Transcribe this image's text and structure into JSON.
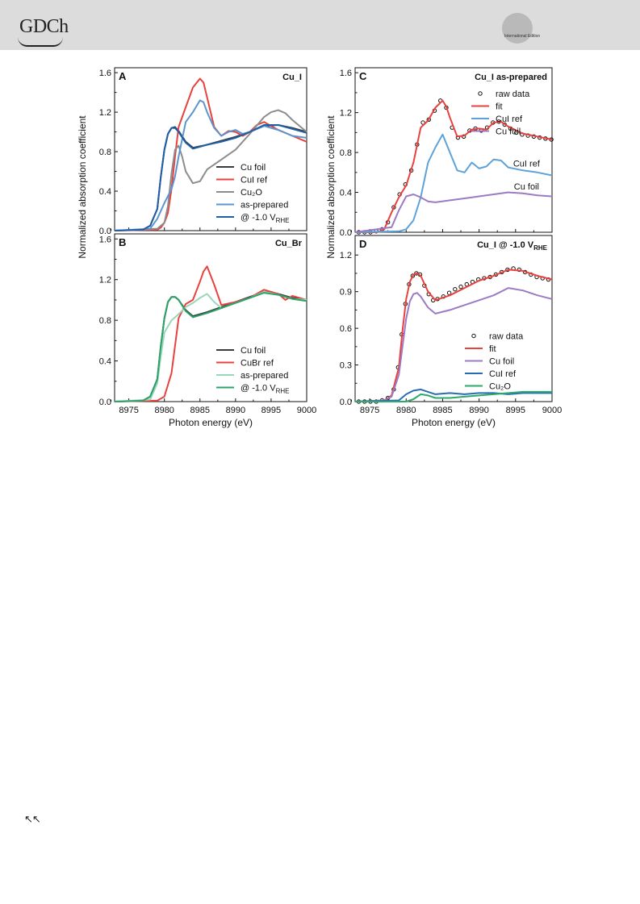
{
  "header": {
    "logo_text": "GDCh",
    "edition_label": "International Edition",
    "back_arrows": "↖↖"
  },
  "colors": {
    "cu_foil": "#3a3a3a",
    "red": "#e8413e",
    "cu2o_grey": "#8c8c8c",
    "as_prepared_blue": "#5b95cf",
    "applied_blue": "#1f5fa6",
    "light_green": "#9ad7b6",
    "green": "#2ba36b",
    "purple": "#9a7bc4",
    "cui_ref_blue": "#5ea2d8",
    "cui_ref_dark_blue": "#2a6cb3",
    "cu2o_green": "#2ea86b"
  },
  "chart_data": [
    {
      "id": "A",
      "type": "line",
      "panel_letter": "A",
      "title": "Cu_I",
      "xlim": [
        8973,
        9000
      ],
      "ylim": [
        0,
        1.65
      ],
      "yticks": [
        "0.0",
        "0.4",
        "0.8",
        "1.2",
        "1.6"
      ],
      "xticks": [],
      "legend_placement": "bottom-right",
      "series": [
        {
          "name": "Cu foil",
          "color_key": "cu_foil",
          "x": [
            8973,
            8977,
            8978,
            8979,
            8979.5,
            8980,
            8980.5,
            8981,
            8981.5,
            8982,
            8983,
            8984,
            8986,
            8988,
            8990,
            8992,
            8994,
            8996,
            8998,
            9000
          ],
          "y": [
            0,
            0.01,
            0.05,
            0.22,
            0.55,
            0.82,
            0.98,
            1.04,
            1.05,
            1.01,
            0.9,
            0.84,
            0.87,
            0.91,
            0.95,
            1.0,
            1.06,
            1.07,
            1.04,
            1.0
          ]
        },
        {
          "name": "CuI ref",
          "color_key": "red",
          "x": [
            8973,
            8979,
            8979.5,
            8980,
            8980.5,
            8981,
            8981.5,
            8982,
            8983,
            8984,
            8985,
            8985.5,
            8986,
            8987,
            8988,
            8989,
            8990,
            8991,
            8992,
            8993,
            8994,
            8996,
            8998,
            9000
          ],
          "y": [
            0,
            0.01,
            0.03,
            0.08,
            0.18,
            0.42,
            0.75,
            1.05,
            1.25,
            1.45,
            1.54,
            1.5,
            1.35,
            1.05,
            0.96,
            1.01,
            1.0,
            0.96,
            1.0,
            1.07,
            1.1,
            1.02,
            0.96,
            0.9
          ]
        },
        {
          "name": "Cu₂O",
          "color_key": "cu2o_grey",
          "x": [
            8973,
            8979,
            8980,
            8980.5,
            8981,
            8981.5,
            8982,
            8982.5,
            8983,
            8984,
            8985,
            8986,
            8988,
            8990,
            8992,
            8994,
            8995,
            8996,
            8997,
            8998,
            9000
          ],
          "y": [
            0,
            0.02,
            0.08,
            0.25,
            0.58,
            0.82,
            0.86,
            0.75,
            0.6,
            0.48,
            0.5,
            0.62,
            0.72,
            0.82,
            0.98,
            1.15,
            1.2,
            1.22,
            1.19,
            1.12,
            1.0
          ]
        },
        {
          "name": "as-prepared",
          "color_key": "as_prepared_blue",
          "x": [
            8973,
            8978,
            8979,
            8980,
            8981,
            8981.5,
            8982,
            8983,
            8984,
            8985,
            8985.5,
            8986,
            8987,
            8988,
            8989,
            8990,
            8991,
            8992,
            8994,
            8996,
            8998,
            9000
          ],
          "y": [
            0,
            0.02,
            0.12,
            0.28,
            0.42,
            0.55,
            0.75,
            1.1,
            1.2,
            1.32,
            1.3,
            1.2,
            1.04,
            0.96,
            1.0,
            1.02,
            0.98,
            1.0,
            1.06,
            1.02,
            0.96,
            0.94
          ]
        },
        {
          "name": "@ -1.0 V",
          "sub": "RHE",
          "color_key": "applied_blue",
          "x": [
            8973,
            8977,
            8978,
            8979,
            8979.5,
            8980,
            8980.5,
            8981,
            8981.5,
            8982,
            8983,
            8984,
            8986,
            8988,
            8990,
            8992,
            8994,
            8996,
            8998,
            9000
          ],
          "y": [
            0,
            0.01,
            0.05,
            0.22,
            0.55,
            0.82,
            0.98,
            1.04,
            1.04,
            1.0,
            0.89,
            0.83,
            0.87,
            0.9,
            0.94,
            1.0,
            1.07,
            1.07,
            1.03,
            0.99
          ]
        }
      ]
    },
    {
      "id": "B",
      "type": "line",
      "panel_letter": "B",
      "title": "Cu_Br",
      "xlabel": "Photon energy (eV)",
      "xlim": [
        8973,
        9000
      ],
      "ylim": [
        0,
        1.65
      ],
      "yticks": [
        "0.0",
        "0.4",
        "0.8",
        "1.2",
        "1.6"
      ],
      "xticks": [
        "8975",
        "8980",
        "8985",
        "8990",
        "8995",
        "9000"
      ],
      "legend_placement": "bottom-right",
      "series": [
        {
          "name": "Cu foil",
          "color_key": "cu_foil",
          "x": [
            8973,
            8977,
            8978,
            8979,
            8979.5,
            8980,
            8980.5,
            8981,
            8981.5,
            8982,
            8983,
            8984,
            8986,
            8988,
            8990,
            8992,
            8994,
            8996,
            8998,
            9000
          ],
          "y": [
            0,
            0.01,
            0.05,
            0.22,
            0.55,
            0.82,
            0.98,
            1.03,
            1.03,
            1.0,
            0.9,
            0.84,
            0.88,
            0.93,
            0.98,
            1.03,
            1.08,
            1.06,
            1.02,
            1.0
          ]
        },
        {
          "name": "CuBr ref",
          "color_key": "red",
          "x": [
            8973,
            8979,
            8980,
            8981,
            8981.5,
            8982,
            8983,
            8984,
            8985,
            8985.5,
            8986,
            8987,
            8988,
            8990,
            8992,
            8994,
            8996,
            8997,
            8998,
            9000
          ],
          "y": [
            0,
            0.01,
            0.05,
            0.28,
            0.55,
            0.82,
            0.96,
            1.0,
            1.18,
            1.28,
            1.33,
            1.15,
            0.95,
            0.98,
            1.02,
            1.1,
            1.06,
            1.0,
            1.04,
            1.0
          ]
        },
        {
          "name": "as-prepared",
          "color_key": "light_green",
          "x": [
            8973,
            8978,
            8979,
            8979.5,
            8980,
            8981,
            8982,
            8983,
            8984,
            8985,
            8986,
            8987,
            8988,
            8990,
            8992,
            8994,
            8996,
            8998,
            9000
          ],
          "y": [
            0,
            0.02,
            0.18,
            0.45,
            0.68,
            0.8,
            0.86,
            0.93,
            0.97,
            1.02,
            1.06,
            0.98,
            0.92,
            0.97,
            1.02,
            1.08,
            1.05,
            1.01,
            1.0
          ]
        },
        {
          "name": "@ -1.0 V",
          "sub": "RHE",
          "color_key": "green",
          "x": [
            8973,
            8977,
            8978,
            8979,
            8979.5,
            8980,
            8980.5,
            8981,
            8981.5,
            8982,
            8983,
            8984,
            8986,
            8988,
            8990,
            8992,
            8994,
            8996,
            8998,
            9000
          ],
          "y": [
            0,
            0.01,
            0.05,
            0.22,
            0.55,
            0.82,
            0.98,
            1.03,
            1.03,
            1.0,
            0.89,
            0.83,
            0.87,
            0.92,
            0.97,
            1.02,
            1.07,
            1.05,
            1.01,
            0.99
          ]
        }
      ]
    },
    {
      "id": "C",
      "type": "line",
      "panel_letter": "C",
      "title": "Cu_I as-prepared",
      "xlim": [
        8973,
        9000
      ],
      "ylim": [
        0,
        1.65
      ],
      "yticks": [
        "0.0",
        "0.4",
        "0.8",
        "1.2",
        "1.6"
      ],
      "xticks": [],
      "legend_placement": "top-right",
      "annotations": [
        {
          "text": "CuI ref",
          "x": 8996.5,
          "y": 0.66
        },
        {
          "text": "Cu foil",
          "x": 8996.5,
          "y": 0.43
        }
      ],
      "series": [
        {
          "name": "raw data",
          "color_key": "cu_foil",
          "style": "markers",
          "x": [
            8973.5,
            8974.3,
            8975.1,
            8975.9,
            8976.7,
            8977.5,
            8978.3,
            8979.1,
            8979.9,
            8980.7,
            8981.5,
            8982.3,
            8983.1,
            8983.9,
            8984.7,
            8985.5,
            8986.3,
            8987.1,
            8987.9,
            8988.7,
            8989.5,
            8990.3,
            8991.1,
            8991.9,
            8992.7,
            8993.5,
            8994.3,
            8995.1,
            8995.9,
            8996.7,
            8997.5,
            8998.3,
            8999.1,
            8999.9
          ],
          "y": [
            0.0,
            0.0,
            0.0,
            0.01,
            0.03,
            0.1,
            0.25,
            0.38,
            0.48,
            0.62,
            0.88,
            1.1,
            1.13,
            1.22,
            1.32,
            1.25,
            1.05,
            0.95,
            0.96,
            1.02,
            1.04,
            1.02,
            1.05,
            1.1,
            1.11,
            1.08,
            1.04,
            1.0,
            0.98,
            0.97,
            0.96,
            0.95,
            0.94,
            0.93
          ]
        },
        {
          "name": "fit",
          "color_key": "red",
          "x": [
            8973,
            8976,
            8977,
            8978,
            8979,
            8980,
            8981,
            8982,
            8983,
            8984,
            8985,
            8985.5,
            8986,
            8987,
            8988,
            8989,
            8990,
            8991,
            8992,
            8993,
            8994,
            8996,
            8998,
            9000
          ],
          "y": [
            0,
            0.0,
            0.03,
            0.2,
            0.35,
            0.47,
            0.7,
            1.05,
            1.12,
            1.25,
            1.32,
            1.26,
            1.15,
            0.96,
            0.97,
            1.03,
            1.04,
            1.03,
            1.1,
            1.11,
            1.06,
            0.99,
            0.96,
            0.93
          ]
        },
        {
          "name": "CuI ref",
          "color_key": "cui_ref_blue",
          "x": [
            8973,
            8979,
            8980,
            8981,
            8982,
            8983,
            8984,
            8985,
            8986,
            8987,
            8988,
            8989,
            8990,
            8991,
            8992,
            8993,
            8994,
            8996,
            8998,
            9000
          ],
          "y": [
            0,
            0.01,
            0.03,
            0.12,
            0.35,
            0.7,
            0.85,
            0.98,
            0.8,
            0.62,
            0.6,
            0.7,
            0.64,
            0.66,
            0.73,
            0.72,
            0.65,
            0.62,
            0.6,
            0.57
          ]
        },
        {
          "name": "Cu foil",
          "color_key": "purple",
          "x": [
            8973,
            8978,
            8979,
            8980,
            8981,
            8982,
            8983,
            8984,
            8986,
            8988,
            8990,
            8992,
            8994,
            8996,
            8998,
            9000
          ],
          "y": [
            0,
            0.05,
            0.22,
            0.36,
            0.38,
            0.35,
            0.31,
            0.3,
            0.32,
            0.34,
            0.36,
            0.38,
            0.4,
            0.39,
            0.37,
            0.36
          ]
        }
      ]
    },
    {
      "id": "D",
      "type": "line",
      "panel_letter": "D",
      "title": "Cu_I @ -1.0 V",
      "title_sub": "RHE",
      "xlabel": "Photon energy (eV)",
      "xlim": [
        8973,
        9000
      ],
      "ylim": [
        0,
        1.36
      ],
      "yticks": [
        "0.0",
        "0.3",
        "0.6",
        "0.9",
        "1.2"
      ],
      "ytick_values": [
        0,
        0.3,
        0.6,
        0.9,
        1.2
      ],
      "xticks": [
        "8975",
        "8980",
        "8985",
        "8990",
        "8995",
        "9000"
      ],
      "legend_placement": "bottom-right",
      "series": [
        {
          "name": "raw data",
          "color_key": "cu_foil",
          "style": "markers",
          "x": [
            8973.5,
            8974.3,
            8975.1,
            8975.9,
            8976.7,
            8977.5,
            8978.3,
            8978.9,
            8979.4,
            8979.9,
            8980.4,
            8980.9,
            8981.4,
            8981.9,
            8982.5,
            8983.1,
            8983.7,
            8984.3,
            8985.1,
            8985.9,
            8986.7,
            8987.5,
            8988.3,
            8989.1,
            8989.9,
            8990.7,
            8991.5,
            8992.3,
            8993.1,
            8993.9,
            8994.7,
            8995.5,
            8996.3,
            8997.1,
            8997.9,
            8998.7,
            8999.5
          ],
          "y": [
            0.0,
            0.0,
            0.0,
            0.0,
            0.01,
            0.03,
            0.1,
            0.28,
            0.55,
            0.8,
            0.96,
            1.03,
            1.05,
            1.04,
            0.95,
            0.88,
            0.83,
            0.84,
            0.86,
            0.89,
            0.92,
            0.94,
            0.96,
            0.98,
            1.0,
            1.01,
            1.02,
            1.04,
            1.06,
            1.08,
            1.09,
            1.08,
            1.06,
            1.04,
            1.02,
            1.01,
            1.0
          ]
        },
        {
          "name": "fit",
          "color_key": "red",
          "x": [
            8973,
            8977,
            8978,
            8979,
            8979.5,
            8980,
            8980.5,
            8981,
            8981.5,
            8982,
            8983,
            8984,
            8986,
            8988,
            8990,
            8992,
            8994,
            8996,
            8998,
            9000
          ],
          "y": [
            0,
            0.01,
            0.05,
            0.28,
            0.58,
            0.84,
            0.98,
            1.04,
            1.05,
            1.03,
            0.9,
            0.83,
            0.87,
            0.93,
            0.99,
            1.03,
            1.08,
            1.07,
            1.03,
            1.0
          ]
        },
        {
          "name": "Cu foil",
          "color_key": "purple",
          "x": [
            8973,
            8977,
            8978,
            8979,
            8979.5,
            8980,
            8980.5,
            8981,
            8981.5,
            8982,
            8983,
            8984,
            8986,
            8988,
            8990,
            8992,
            8994,
            8996,
            8998,
            9000
          ],
          "y": [
            0,
            0.01,
            0.04,
            0.22,
            0.45,
            0.68,
            0.82,
            0.88,
            0.89,
            0.86,
            0.77,
            0.72,
            0.75,
            0.79,
            0.83,
            0.87,
            0.93,
            0.91,
            0.87,
            0.84
          ]
        },
        {
          "name": "CuI ref",
          "color_key": "cui_ref_dark_blue",
          "x": [
            8973,
            8979,
            8980,
            8981,
            8982,
            8983,
            8984,
            8986,
            8988,
            8990,
            8992,
            8994,
            8996,
            8998,
            9000
          ],
          "y": [
            0,
            0.01,
            0.06,
            0.09,
            0.1,
            0.08,
            0.06,
            0.07,
            0.06,
            0.07,
            0.07,
            0.06,
            0.07,
            0.07,
            0.07
          ]
        },
        {
          "name": "Cu₂O",
          "color_key": "cu2o_green",
          "x": [
            8973,
            8980,
            8981,
            8982,
            8983,
            8984,
            8986,
            8988,
            8990,
            8992,
            8994,
            8996,
            8998,
            9000
          ],
          "y": [
            0,
            0.0,
            0.02,
            0.06,
            0.05,
            0.03,
            0.03,
            0.04,
            0.05,
            0.06,
            0.07,
            0.08,
            0.08,
            0.08
          ]
        }
      ]
    }
  ],
  "shared": {
    "ylabel": "Normalized absorption coefficient"
  }
}
